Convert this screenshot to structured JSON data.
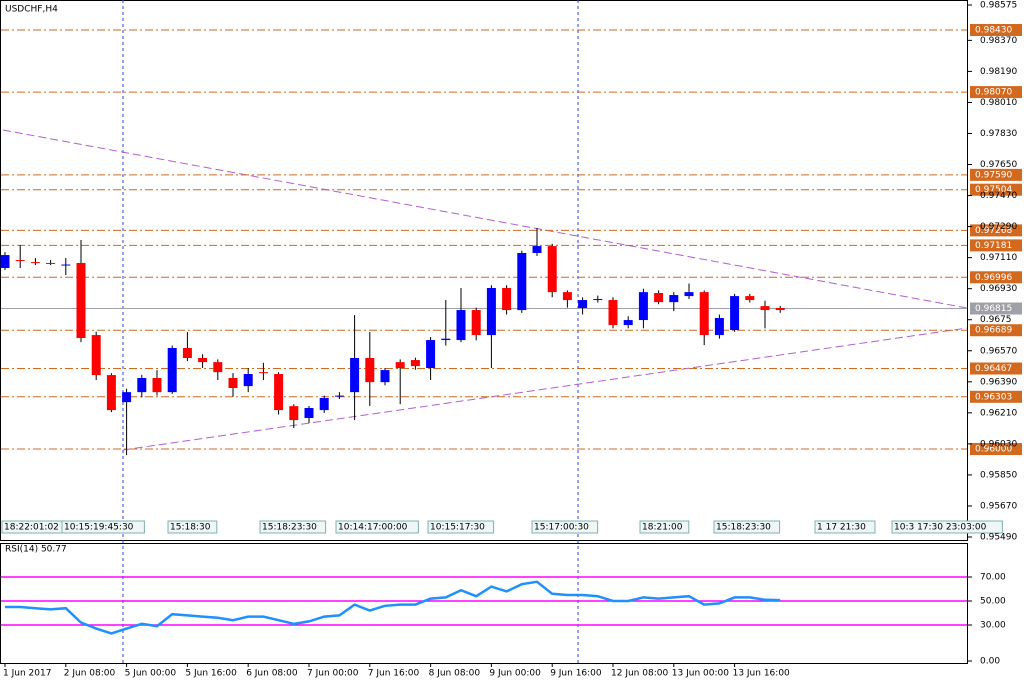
{
  "chart_data": [
    {
      "type": "candlestick",
      "title": "USDCHF,H4",
      "categories": [
        "1 Jun 2017",
        null,
        null,
        null,
        "2 Jun 08:00",
        null,
        null,
        null,
        "5 Jun 00:00",
        null,
        null,
        null,
        "5 Jun 16:00",
        null,
        null,
        null,
        "6 Jun 08:00",
        null,
        null,
        null,
        "7 Jun 00:00",
        null,
        null,
        null,
        "7 Jun 16:00",
        null,
        null,
        null,
        "8 Jun 08:00",
        null,
        null,
        null,
        "9 Jun 00:00",
        null,
        null,
        null,
        "9 Jun 16:00",
        null,
        null,
        null,
        "12 Jun 08:00",
        null,
        null,
        null,
        "13 Jun 00:00",
        null,
        null,
        null,
        "13 Jun 16:00",
        null,
        null,
        null
      ],
      "open": [
        0.9705,
        0.97096,
        0.97084,
        0.97079,
        0.97067,
        0.97079,
        0.96661,
        0.96429,
        0.96272,
        0.9633,
        0.96412,
        0.9633,
        0.96586,
        0.96528,
        0.96504,
        0.96412,
        0.96365,
        0.96446,
        0.96435,
        0.96249,
        0.9618,
        0.96226,
        0.96307,
        0.9633,
        0.96528,
        0.96388,
        0.96504,
        0.96516,
        0.9647,
        0.96632,
        0.96632,
        0.96806,
        0.96661,
        0.96934,
        0.96806,
        0.97137,
        0.97177,
        0.9691,
        0.96818,
        0.96864,
        0.96864,
        0.96719,
        0.96748,
        0.96905,
        0.96852,
        0.96887,
        0.9691,
        0.96661,
        0.9669,
        0.96887,
        0.96829,
        0.96818
      ],
      "high": [
        0.97142,
        0.97183,
        0.97108,
        0.97096,
        0.97108,
        0.97212,
        0.9668,
        0.9644,
        0.9635,
        0.9643,
        0.96458,
        0.966,
        0.96678,
        0.9655,
        0.9652,
        0.9644,
        0.9647,
        0.965,
        0.96446,
        0.9626,
        0.9625,
        0.9631,
        0.9633,
        0.96777,
        0.96678,
        0.9647,
        0.9652,
        0.9653,
        0.9665,
        0.96864,
        0.96934,
        0.9682,
        0.9695,
        0.9695,
        0.9715,
        0.97282,
        0.9719,
        0.9692,
        0.9688,
        0.9689,
        0.9688,
        0.9677,
        0.9693,
        0.9692,
        0.9691,
        0.9696,
        0.9692,
        0.9678,
        0.969,
        0.969,
        0.9686,
        0.9683
      ],
      "low": [
        0.97038,
        0.9705,
        0.97067,
        0.97067,
        0.97009,
        0.9662,
        0.964,
        0.96214,
        0.95965,
        0.963,
        0.9631,
        0.9632,
        0.9651,
        0.9647,
        0.964,
        0.96303,
        0.9633,
        0.964,
        0.962,
        0.96122,
        0.9615,
        0.9621,
        0.9629,
        0.96168,
        0.9625,
        0.9637,
        0.9626,
        0.9646,
        0.964,
        0.966,
        0.9662,
        0.9663,
        0.9647,
        0.9678,
        0.9679,
        0.9712,
        0.9688,
        0.9682,
        0.9678,
        0.9685,
        0.967,
        0.967,
        0.967,
        0.9684,
        0.968,
        0.9687,
        0.96603,
        0.9664,
        0.9668,
        0.9685,
        0.967,
        0.9679
      ],
      "close": [
        0.97125,
        0.9709,
        0.9708,
        0.97078,
        0.9707,
        0.96644,
        0.96429,
        0.96226,
        0.9633,
        0.96412,
        0.9633,
        0.96586,
        0.96528,
        0.96504,
        0.96446,
        0.96354,
        0.96435,
        0.9644,
        0.96226,
        0.96168,
        0.96238,
        0.96296,
        0.9631,
        0.96528,
        0.96388,
        0.96458,
        0.9647,
        0.96481,
        0.96632,
        0.9664,
        0.96806,
        0.96661,
        0.96934,
        0.96806,
        0.97137,
        0.97177,
        0.9691,
        0.96864,
        0.96864,
        0.9687,
        0.96719,
        0.96748,
        0.9691,
        0.96852,
        0.96893,
        0.9691,
        0.96661,
        0.9676,
        0.96887,
        0.96864,
        0.96806,
        0.96806
      ],
      "up_color": "#0000ff",
      "down_color": "#ff0000",
      "ylim": [
        0.9549,
        0.98575
      ],
      "yticks": [
        0.98575,
        {
          "value": 0.9837,
          "label": "0.98370"
        },
        {
          "value": 0.9819,
          "label": "0.98190"
        },
        {
          "value": 0.9801,
          "label": "0.98010"
        },
        {
          "value": 0.9783,
          "label": "0.97830"
        },
        {
          "value": 0.9765,
          "label": "0.97650"
        },
        {
          "value": 0.9747,
          "label": "0.97470"
        },
        {
          "value": 0.9729,
          "label": "0.97290"
        },
        {
          "value": 0.9711,
          "label": "0.97110"
        },
        {
          "value": 0.9693,
          "label": "0.96930"
        },
        0.9675,
        {
          "value": 0.9657,
          "label": "0.96570"
        },
        {
          "value": 0.9639,
          "label": "0.96390"
        },
        {
          "value": 0.9621,
          "label": "0.96210"
        },
        {
          "value": 0.9603,
          "label": "0.96030"
        },
        {
          "value": 0.9585,
          "label": "0.95850"
        },
        {
          "value": 0.9567,
          "label": "0.95670"
        },
        {
          "value": 0.9549,
          "label": "0.95490"
        }
      ],
      "levels": [
        {
          "value": 0.9843,
          "label": "0.98430"
        },
        {
          "value": 0.9807,
          "label": "0.98070"
        },
        {
          "value": 0.9759,
          "label": "0.97590"
        },
        0.97504,
        0.97268,
        0.97181,
        0.96996,
        0.96689,
        0.96467,
        0.96303,
        {
          "value": 0.96,
          "label": "0.96000"
        }
      ],
      "level_color": "#d2691e",
      "last_price": 0.96815,
      "time_markers": [
        "18:22:01:02",
        "10:15:19:45:30",
        "15:18:30",
        "15:18:23:30",
        "10:14:17:00:00",
        "10:15:17:30",
        "15:17:00:30",
        "18:21:00",
        "15:18:23:30",
        "1 17 21:30",
        "10:3 17:30 23:03:00"
      ]
    },
    {
      "type": "line",
      "title": "RSI(14) 50.77",
      "color": "#1e90ff",
      "values": [
        45,
        45,
        44,
        43,
        44,
        32,
        27,
        23,
        27,
        31,
        29,
        39,
        38,
        37,
        36,
        34,
        37,
        37,
        34,
        31,
        33,
        37,
        38,
        47,
        42,
        46,
        47,
        47,
        52,
        53,
        59,
        54,
        62,
        58,
        64,
        66,
        56,
        55,
        55,
        54,
        50,
        50,
        53,
        52,
        53,
        54,
        47,
        48,
        53,
        53,
        51,
        50.77
      ],
      "ylim": [
        0,
        100
      ],
      "yticks": [
        {
          "value": 70,
          "label": "70.00"
        },
        {
          "value": 50,
          "label": "50.00"
        },
        {
          "value": 30,
          "label": "30.00"
        },
        {
          "value": 0,
          "label": "0.00"
        }
      ],
      "levels": [
        70,
        50,
        30
      ],
      "level_color": "#ff00ff"
    }
  ]
}
